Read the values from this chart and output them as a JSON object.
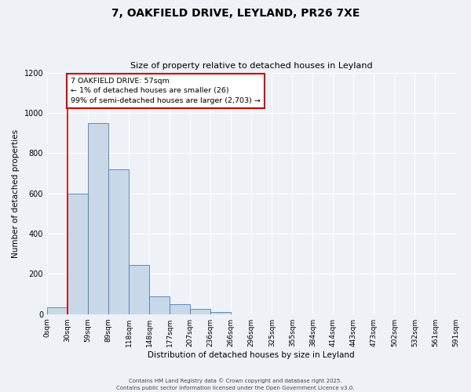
{
  "title": "7, OAKFIELD DRIVE, LEYLAND, PR26 7XE",
  "subtitle": "Size of property relative to detached houses in Leyland",
  "xlabel": "Distribution of detached houses by size in Leyland",
  "ylabel": "Number of detached properties",
  "bar_values": [
    35,
    600,
    950,
    720,
    245,
    90,
    50,
    25,
    10,
    0,
    0,
    0,
    0,
    0,
    0,
    0,
    0,
    0,
    0,
    0
  ],
  "bin_labels": [
    "0sqm",
    "30sqm",
    "59sqm",
    "89sqm",
    "118sqm",
    "148sqm",
    "177sqm",
    "207sqm",
    "236sqm",
    "266sqm",
    "296sqm",
    "325sqm",
    "355sqm",
    "384sqm",
    "414sqm",
    "443sqm",
    "473sqm",
    "502sqm",
    "532sqm",
    "561sqm",
    "591sqm"
  ],
  "bar_color": "#c8d8e8",
  "bar_edge_color": "#4a7ab5",
  "ylim": [
    0,
    1200
  ],
  "yticks": [
    0,
    200,
    400,
    600,
    800,
    1000,
    1200
  ],
  "vline_x": 1,
  "vline_color": "#cc0000",
  "annotation_text": "7 OAKFIELD DRIVE: 57sqm\n← 1% of detached houses are smaller (26)\n99% of semi-detached houses are larger (2,703) →",
  "annotation_box_color": "#ffffff",
  "annotation_box_edge": "#cc0000",
  "footer1": "Contains HM Land Registry data © Crown copyright and database right 2025.",
  "footer2": "Contains public sector information licensed under the Open Government Licence v3.0.",
  "background_color": "#eef2f7",
  "grid_color": "#ffffff",
  "fig_width": 6.0,
  "fig_height": 5.0,
  "title_fontsize": 10,
  "subtitle_fontsize": 8
}
